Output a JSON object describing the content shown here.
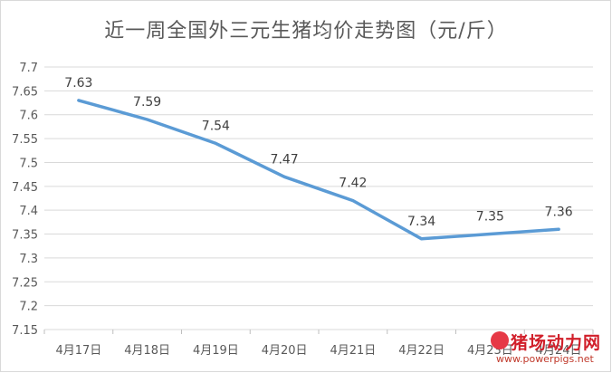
{
  "chart_data": {
    "type": "line",
    "title": "近一周全国外三元生猪均价走势图（元/斤）",
    "categories": [
      "4月17日",
      "4月18日",
      "4月19日",
      "4月20日",
      "4月21日",
      "4月22日",
      "4月23日",
      "4月24日"
    ],
    "series": [
      {
        "values": [
          7.63,
          7.59,
          7.54,
          7.47,
          7.42,
          7.34,
          7.35,
          7.36
        ]
      }
    ],
    "data_labels": [
      "7.63",
      "7.59",
      "7.54",
      "7.47",
      "7.42",
      "7.34",
      "7.35",
      "7.36"
    ],
    "ylim": [
      7.15,
      7.7
    ],
    "yticks": [
      7.15,
      7.2,
      7.25,
      7.3,
      7.35,
      7.4,
      7.45,
      7.5,
      7.55,
      7.6,
      7.65,
      7.7
    ],
    "ytick_labels": [
      "7.15",
      "7.2",
      "7.25",
      "7.3",
      "7.35",
      "7.4",
      "7.45",
      "7.5",
      "7.55",
      "7.6",
      "7.65",
      "7.7"
    ],
    "grid": true,
    "line_color": "#5b9bd5"
  },
  "watermark": {
    "name": "猪场动力网",
    "url": "www.powerpigs.net"
  }
}
